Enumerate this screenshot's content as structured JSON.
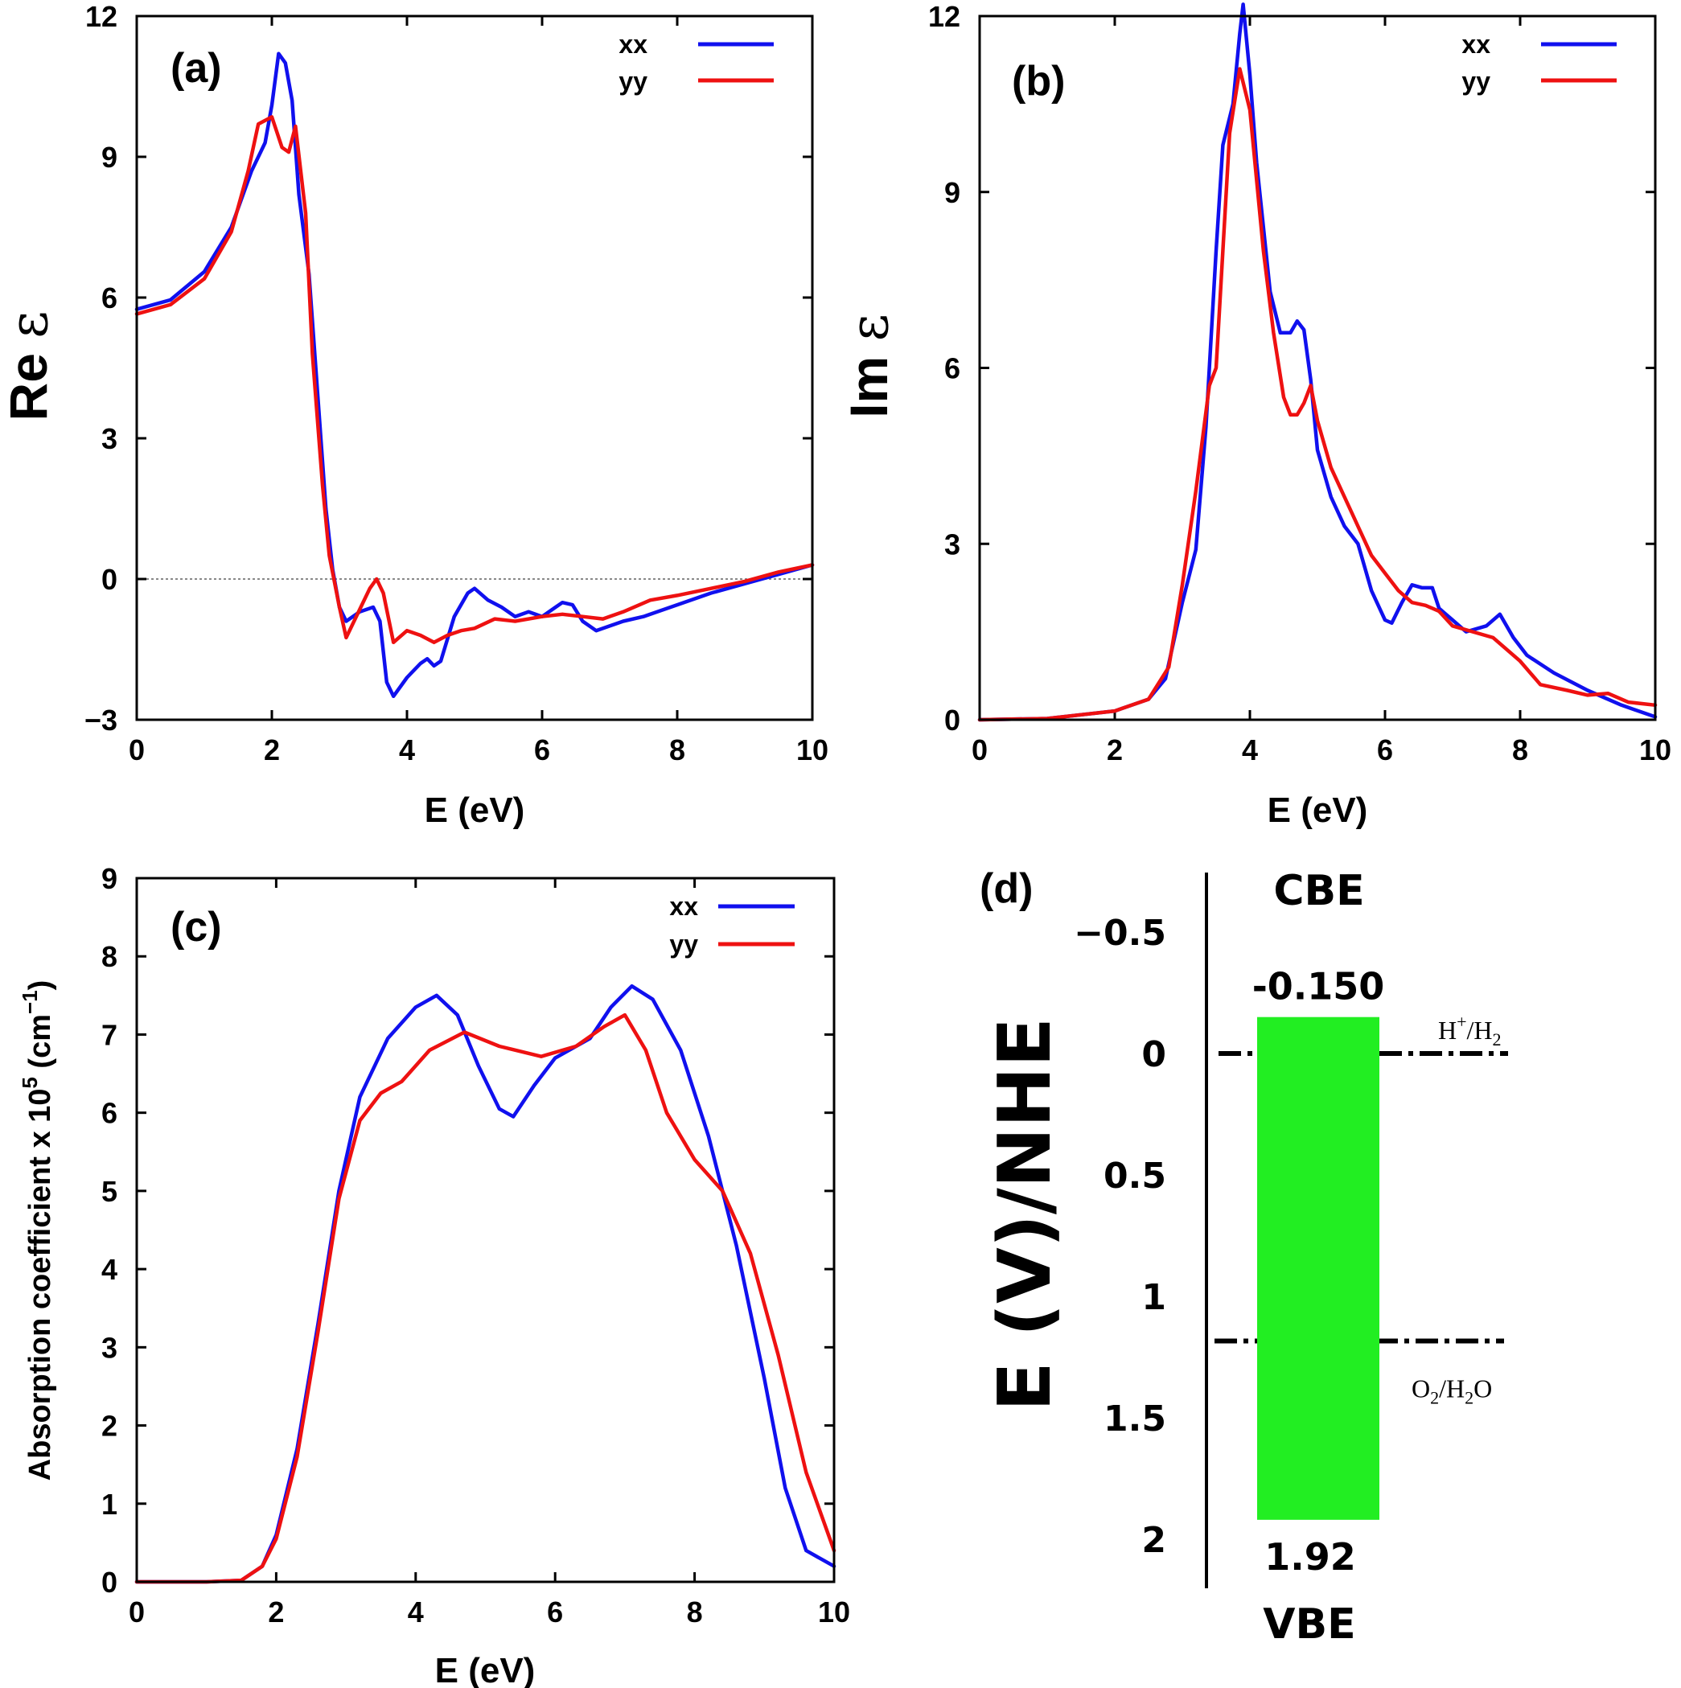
{
  "chart_data": [
    {
      "panel": "(a)",
      "type": "line",
      "xlabel": "E (eV)",
      "ylabel_prefix": "Re ",
      "ylabel_symbol": "ε",
      "xlim": [
        0,
        10
      ],
      "ylim": [
        -3,
        12
      ],
      "xticks": [
        "0",
        "2",
        "4",
        "6",
        "8",
        "10"
      ],
      "yticks": [
        "−3",
        "0",
        "3",
        "6",
        "9",
        "12"
      ],
      "zero_line": true,
      "legend": [
        "xx",
        "yy"
      ],
      "colors": [
        "#1010ee",
        "#ee1111"
      ],
      "series": [
        {
          "name": "xx",
          "points": [
            [
              0,
              5.75
            ],
            [
              0.5,
              5.95
            ],
            [
              1.0,
              6.55
            ],
            [
              1.4,
              7.5
            ],
            [
              1.7,
              8.7
            ],
            [
              1.9,
              9.3
            ],
            [
              2.0,
              10.1
            ],
            [
              2.1,
              11.2
            ],
            [
              2.2,
              11.0
            ],
            [
              2.3,
              10.2
            ],
            [
              2.4,
              8.2
            ],
            [
              2.55,
              6.5
            ],
            [
              2.7,
              3.5
            ],
            [
              2.8,
              1.5
            ],
            [
              2.9,
              0.2
            ],
            [
              3.0,
              -0.6
            ],
            [
              3.1,
              -0.9
            ],
            [
              3.3,
              -0.7
            ],
            [
              3.5,
              -0.6
            ],
            [
              3.6,
              -0.9
            ],
            [
              3.7,
              -2.2
            ],
            [
              3.8,
              -2.5
            ],
            [
              4.0,
              -2.1
            ],
            [
              4.2,
              -1.8
            ],
            [
              4.3,
              -1.7
            ],
            [
              4.4,
              -1.85
            ],
            [
              4.5,
              -1.75
            ],
            [
              4.7,
              -0.8
            ],
            [
              4.9,
              -0.3
            ],
            [
              5.0,
              -0.2
            ],
            [
              5.2,
              -0.45
            ],
            [
              5.4,
              -0.6
            ],
            [
              5.6,
              -0.8
            ],
            [
              5.8,
              -0.7
            ],
            [
              6.0,
              -0.8
            ],
            [
              6.2,
              -0.6
            ],
            [
              6.3,
              -0.5
            ],
            [
              6.45,
              -0.55
            ],
            [
              6.6,
              -0.9
            ],
            [
              6.8,
              -1.1
            ],
            [
              7.2,
              -0.9
            ],
            [
              7.5,
              -0.8
            ],
            [
              8.0,
              -0.55
            ],
            [
              8.5,
              -0.3
            ],
            [
              9.0,
              -0.1
            ],
            [
              9.5,
              0.1
            ],
            [
              10.0,
              0.3
            ]
          ]
        },
        {
          "name": "yy",
          "points": [
            [
              0,
              5.65
            ],
            [
              0.5,
              5.85
            ],
            [
              1.0,
              6.4
            ],
            [
              1.4,
              7.4
            ],
            [
              1.65,
              8.7
            ],
            [
              1.8,
              9.7
            ],
            [
              2.0,
              9.85
            ],
            [
              2.15,
              9.2
            ],
            [
              2.25,
              9.1
            ],
            [
              2.35,
              9.65
            ],
            [
              2.5,
              7.8
            ],
            [
              2.6,
              4.8
            ],
            [
              2.75,
              2.0
            ],
            [
              2.85,
              0.5
            ],
            [
              3.0,
              -0.6
            ],
            [
              3.1,
              -1.25
            ],
            [
              3.3,
              -0.65
            ],
            [
              3.45,
              -0.2
            ],
            [
              3.55,
              0.0
            ],
            [
              3.65,
              -0.3
            ],
            [
              3.8,
              -1.35
            ],
            [
              4.0,
              -1.1
            ],
            [
              4.2,
              -1.2
            ],
            [
              4.4,
              -1.35
            ],
            [
              4.6,
              -1.2
            ],
            [
              4.8,
              -1.1
            ],
            [
              5.0,
              -1.05
            ],
            [
              5.3,
              -0.85
            ],
            [
              5.6,
              -0.9
            ],
            [
              6.0,
              -0.8
            ],
            [
              6.3,
              -0.75
            ],
            [
              6.6,
              -0.8
            ],
            [
              6.9,
              -0.85
            ],
            [
              7.2,
              -0.7
            ],
            [
              7.6,
              -0.45
            ],
            [
              8.0,
              -0.35
            ],
            [
              8.5,
              -0.2
            ],
            [
              9.0,
              -0.05
            ],
            [
              9.5,
              0.15
            ],
            [
              10.0,
              0.3
            ]
          ]
        }
      ]
    },
    {
      "panel": "(b)",
      "type": "line",
      "xlabel": "E (eV)",
      "ylabel_prefix": "Im ",
      "ylabel_symbol": "ε",
      "xlim": [
        0,
        10
      ],
      "ylim": [
        0,
        12
      ],
      "xticks": [
        "0",
        "2",
        "4",
        "6",
        "8",
        "10"
      ],
      "yticks": [
        "0",
        "3",
        "6",
        "9",
        "12"
      ],
      "legend": [
        "xx",
        "yy"
      ],
      "colors": [
        "#1010ee",
        "#ee1111"
      ],
      "series": [
        {
          "name": "xx",
          "points": [
            [
              0,
              0
            ],
            [
              1,
              0.02
            ],
            [
              2,
              0.15
            ],
            [
              2.5,
              0.35
            ],
            [
              2.75,
              0.7
            ],
            [
              3.0,
              2.0
            ],
            [
              3.2,
              2.9
            ],
            [
              3.35,
              5.0
            ],
            [
              3.5,
              8.0
            ],
            [
              3.6,
              9.8
            ],
            [
              3.75,
              10.5
            ],
            [
              3.85,
              11.7
            ],
            [
              3.9,
              12.2
            ],
            [
              4.0,
              11.0
            ],
            [
              4.1,
              9.5
            ],
            [
              4.2,
              8.4
            ],
            [
              4.3,
              7.3
            ],
            [
              4.45,
              6.6
            ],
            [
              4.6,
              6.6
            ],
            [
              4.7,
              6.8
            ],
            [
              4.8,
              6.65
            ],
            [
              4.9,
              5.8
            ],
            [
              5.0,
              4.6
            ],
            [
              5.2,
              3.8
            ],
            [
              5.4,
              3.3
            ],
            [
              5.6,
              3.0
            ],
            [
              5.8,
              2.2
            ],
            [
              6.0,
              1.7
            ],
            [
              6.1,
              1.65
            ],
            [
              6.25,
              2.0
            ],
            [
              6.4,
              2.3
            ],
            [
              6.55,
              2.25
            ],
            [
              6.7,
              2.25
            ],
            [
              6.8,
              1.9
            ],
            [
              7.0,
              1.7
            ],
            [
              7.2,
              1.5
            ],
            [
              7.5,
              1.6
            ],
            [
              7.7,
              1.8
            ],
            [
              7.9,
              1.4
            ],
            [
              8.1,
              1.1
            ],
            [
              8.5,
              0.8
            ],
            [
              9.0,
              0.5
            ],
            [
              9.5,
              0.25
            ],
            [
              10.0,
              0.05
            ]
          ]
        },
        {
          "name": "yy",
          "points": [
            [
              0,
              0
            ],
            [
              1,
              0.02
            ],
            [
              2,
              0.15
            ],
            [
              2.5,
              0.35
            ],
            [
              2.8,
              0.9
            ],
            [
              3.0,
              2.3
            ],
            [
              3.2,
              3.9
            ],
            [
              3.4,
              5.7
            ],
            [
              3.5,
              6.0
            ],
            [
              3.6,
              8.0
            ],
            [
              3.7,
              10.0
            ],
            [
              3.85,
              11.1
            ],
            [
              4.0,
              10.4
            ],
            [
              4.1,
              9.2
            ],
            [
              4.2,
              8.0
            ],
            [
              4.35,
              6.6
            ],
            [
              4.5,
              5.5
            ],
            [
              4.6,
              5.2
            ],
            [
              4.7,
              5.2
            ],
            [
              4.8,
              5.4
            ],
            [
              4.9,
              5.7
            ],
            [
              5.0,
              5.1
            ],
            [
              5.2,
              4.3
            ],
            [
              5.4,
              3.8
            ],
            [
              5.6,
              3.3
            ],
            [
              5.8,
              2.8
            ],
            [
              6.0,
              2.5
            ],
            [
              6.2,
              2.2
            ],
            [
              6.4,
              2.0
            ],
            [
              6.6,
              1.95
            ],
            [
              6.8,
              1.85
            ],
            [
              7.0,
              1.6
            ],
            [
              7.3,
              1.5
            ],
            [
              7.6,
              1.4
            ],
            [
              8.0,
              1.0
            ],
            [
              8.3,
              0.6
            ],
            [
              8.7,
              0.5
            ],
            [
              9.0,
              0.42
            ],
            [
              9.3,
              0.45
            ],
            [
              9.6,
              0.3
            ],
            [
              10.0,
              0.25
            ]
          ]
        }
      ]
    },
    {
      "panel": "(c)",
      "type": "line",
      "xlabel": "E (eV)",
      "ylabel_main": "Absorption coefficient x 10",
      "ylabel_sup": "5",
      "ylabel_unit_a": " (cm",
      "ylabel_unit_sup": "−1",
      "ylabel_unit_b": ")",
      "xlim": [
        0,
        10
      ],
      "ylim": [
        0,
        9
      ],
      "xticks": [
        "0",
        "2",
        "4",
        "6",
        "8",
        "10"
      ],
      "yticks": [
        "0",
        "1",
        "2",
        "3",
        "4",
        "5",
        "6",
        "7",
        "8",
        "9"
      ],
      "legend": [
        "xx",
        "yy"
      ],
      "colors": [
        "#1010ee",
        "#ee1111"
      ],
      "series": [
        {
          "name": "xx",
          "points": [
            [
              0,
              0
            ],
            [
              1.0,
              0
            ],
            [
              1.5,
              0.02
            ],
            [
              1.8,
              0.2
            ],
            [
              2.0,
              0.6
            ],
            [
              2.3,
              1.7
            ],
            [
              2.6,
              3.3
            ],
            [
              2.9,
              5.0
            ],
            [
              3.2,
              6.2
            ],
            [
              3.6,
              6.95
            ],
            [
              4.0,
              7.35
            ],
            [
              4.3,
              7.5
            ],
            [
              4.6,
              7.25
            ],
            [
              4.9,
              6.6
            ],
            [
              5.2,
              6.05
            ],
            [
              5.4,
              5.95
            ],
            [
              5.7,
              6.35
            ],
            [
              6.0,
              6.7
            ],
            [
              6.5,
              6.95
            ],
            [
              6.8,
              7.35
            ],
            [
              7.1,
              7.62
            ],
            [
              7.4,
              7.45
            ],
            [
              7.8,
              6.8
            ],
            [
              8.2,
              5.7
            ],
            [
              8.6,
              4.3
            ],
            [
              9.0,
              2.6
            ],
            [
              9.3,
              1.2
            ],
            [
              9.6,
              0.4
            ],
            [
              10.0,
              0.2
            ]
          ]
        },
        {
          "name": "yy",
          "points": [
            [
              0,
              0
            ],
            [
              1.0,
              0
            ],
            [
              1.5,
              0.02
            ],
            [
              1.8,
              0.2
            ],
            [
              2.0,
              0.55
            ],
            [
              2.3,
              1.6
            ],
            [
              2.6,
              3.2
            ],
            [
              2.9,
              4.9
            ],
            [
              3.2,
              5.9
            ],
            [
              3.5,
              6.25
            ],
            [
              3.8,
              6.4
            ],
            [
              4.2,
              6.8
            ],
            [
              4.7,
              7.03
            ],
            [
              5.2,
              6.85
            ],
            [
              5.8,
              6.72
            ],
            [
              6.3,
              6.85
            ],
            [
              6.7,
              7.1
            ],
            [
              7.0,
              7.25
            ],
            [
              7.3,
              6.8
            ],
            [
              7.6,
              6.0
            ],
            [
              8.0,
              5.4
            ],
            [
              8.4,
              5.0
            ],
            [
              8.8,
              4.2
            ],
            [
              9.2,
              2.9
            ],
            [
              9.6,
              1.4
            ],
            [
              10.0,
              0.4
            ]
          ]
        }
      ]
    },
    {
      "panel": "(d)",
      "type": "bar",
      "ylabel": "E (V)/NHE",
      "ylim": [
        -0.75,
        2.2
      ],
      "yticks": [
        "−0.5",
        "0",
        "0.5",
        "1",
        "1.5",
        "2"
      ],
      "ytick_values": [
        -0.5,
        0,
        0.5,
        1,
        1.5,
        2
      ],
      "top_label": "CBE",
      "bottom_label": "VBE",
      "cbe": -0.15,
      "vbe": 1.92,
      "cbe_label": "-0.150",
      "vbe_label": "1.92",
      "bar_color": "#22ee22",
      "redox_h": {
        "value": 0.0,
        "label_main": "H",
        "label_sup": "+",
        "label_mid": "/H",
        "label_sub": "2"
      },
      "redox_o": {
        "value": 1.23,
        "label_a": "O",
        "label_sub1": "2",
        "label_b": "/H",
        "label_sub2": "2",
        "label_c": "O"
      }
    }
  ]
}
